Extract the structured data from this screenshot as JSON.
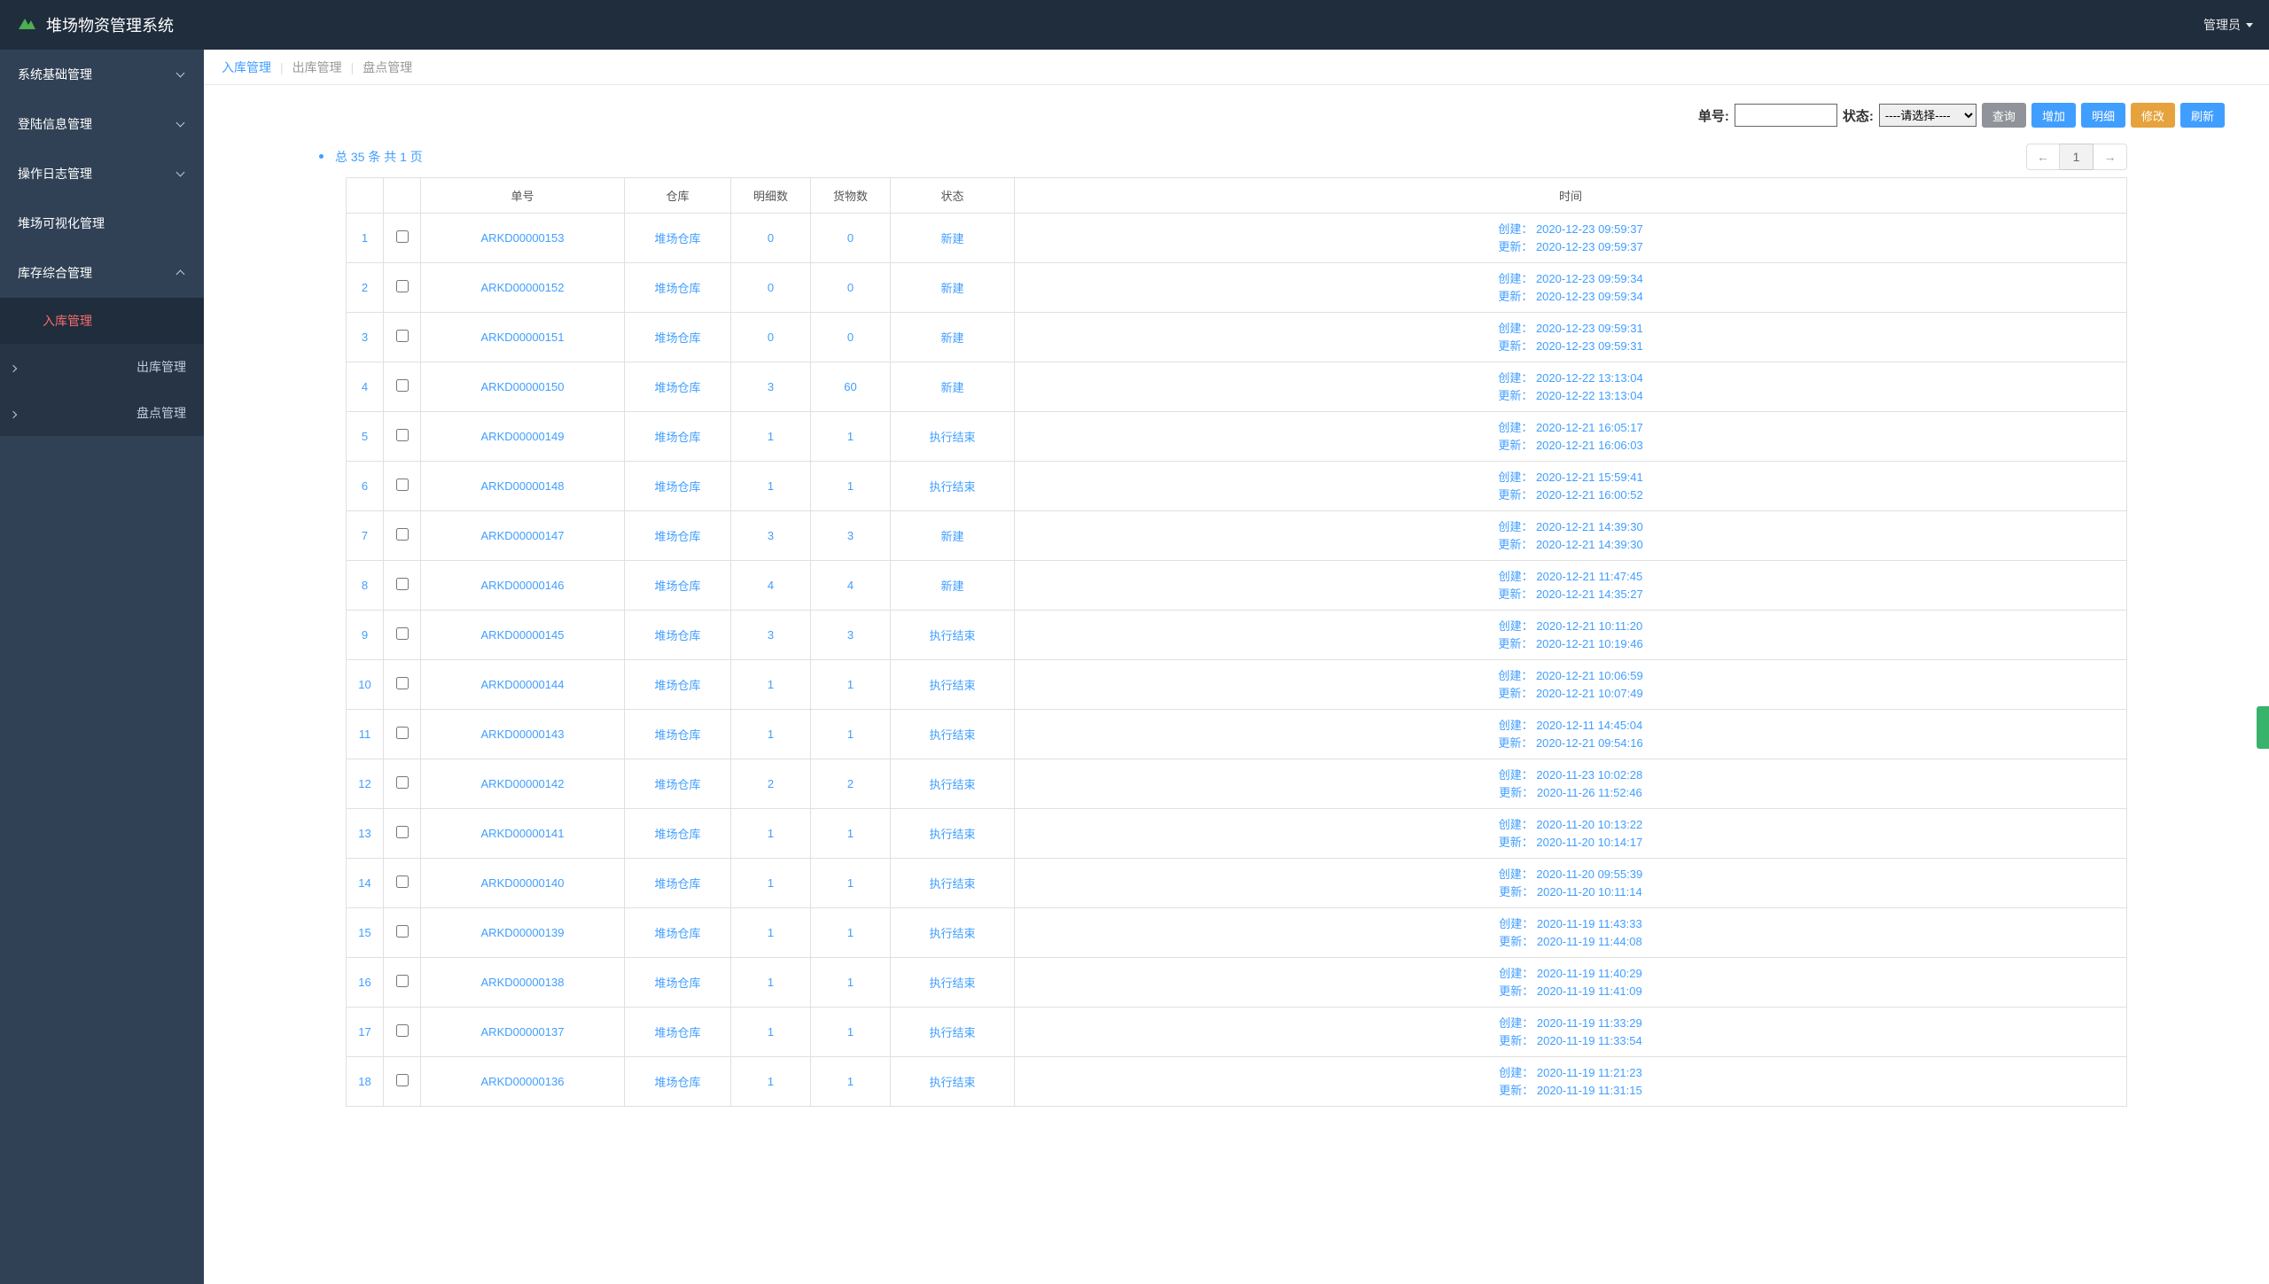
{
  "header": {
    "title": "堆场物资管理系统",
    "user": "管理员"
  },
  "sidebar": {
    "items": [
      {
        "label": "系统基础管理",
        "expandable": true
      },
      {
        "label": "登陆信息管理",
        "expandable": true
      },
      {
        "label": "操作日志管理",
        "expandable": true
      },
      {
        "label": "堆场可视化管理",
        "expandable": false
      },
      {
        "label": "库存综合管理",
        "expandable": true,
        "expanded": true,
        "subitems": [
          {
            "label": "入库管理",
            "active": true
          },
          {
            "label": "出库管理",
            "has_arrow": true
          },
          {
            "label": "盘点管理",
            "has_arrow": true
          }
        ]
      }
    ]
  },
  "tabs": {
    "items": [
      "入库管理",
      "出库管理",
      "盘点管理"
    ],
    "activeIndex": 0
  },
  "filters": {
    "order_label": "单号:",
    "status_label": "状态:",
    "status_placeholder": "----请选择----",
    "buttons": {
      "query": "查询",
      "add": "增加",
      "detail": "明细",
      "edit": "修改",
      "refresh": "刷新"
    }
  },
  "summary": {
    "text": "总 35 条  共 1 页",
    "page": "1",
    "prev": "←",
    "next": "→"
  },
  "table": {
    "headers": [
      "",
      "",
      "单号",
      "仓库",
      "明细数",
      "货物数",
      "状态",
      "时间"
    ],
    "time_labels": {
      "created": "创建：",
      "updated": "更新："
    },
    "rows": [
      {
        "idx": "1",
        "order": "ARKD00000153",
        "warehouse": "堆场仓库",
        "detail": "0",
        "goods": "0",
        "status": "新建",
        "created": "2020-12-23 09:59:37",
        "updated": "2020-12-23 09:59:37"
      },
      {
        "idx": "2",
        "order": "ARKD00000152",
        "warehouse": "堆场仓库",
        "detail": "0",
        "goods": "0",
        "status": "新建",
        "created": "2020-12-23 09:59:34",
        "updated": "2020-12-23 09:59:34"
      },
      {
        "idx": "3",
        "order": "ARKD00000151",
        "warehouse": "堆场仓库",
        "detail": "0",
        "goods": "0",
        "status": "新建",
        "created": "2020-12-23 09:59:31",
        "updated": "2020-12-23 09:59:31"
      },
      {
        "idx": "4",
        "order": "ARKD00000150",
        "warehouse": "堆场仓库",
        "detail": "3",
        "goods": "60",
        "status": "新建",
        "created": "2020-12-22 13:13:04",
        "updated": "2020-12-22 13:13:04"
      },
      {
        "idx": "5",
        "order": "ARKD00000149",
        "warehouse": "堆场仓库",
        "detail": "1",
        "goods": "1",
        "status": "执行结束",
        "created": "2020-12-21 16:05:17",
        "updated": "2020-12-21 16:06:03"
      },
      {
        "idx": "6",
        "order": "ARKD00000148",
        "warehouse": "堆场仓库",
        "detail": "1",
        "goods": "1",
        "status": "执行结束",
        "created": "2020-12-21 15:59:41",
        "updated": "2020-12-21 16:00:52"
      },
      {
        "idx": "7",
        "order": "ARKD00000147",
        "warehouse": "堆场仓库",
        "detail": "3",
        "goods": "3",
        "status": "新建",
        "created": "2020-12-21 14:39:30",
        "updated": "2020-12-21 14:39:30"
      },
      {
        "idx": "8",
        "order": "ARKD00000146",
        "warehouse": "堆场仓库",
        "detail": "4",
        "goods": "4",
        "status": "新建",
        "created": "2020-12-21 11:47:45",
        "updated": "2020-12-21 14:35:27"
      },
      {
        "idx": "9",
        "order": "ARKD00000145",
        "warehouse": "堆场仓库",
        "detail": "3",
        "goods": "3",
        "status": "执行结束",
        "created": "2020-12-21 10:11:20",
        "updated": "2020-12-21 10:19:46"
      },
      {
        "idx": "10",
        "order": "ARKD00000144",
        "warehouse": "堆场仓库",
        "detail": "1",
        "goods": "1",
        "status": "执行结束",
        "created": "2020-12-21 10:06:59",
        "updated": "2020-12-21 10:07:49"
      },
      {
        "idx": "11",
        "order": "ARKD00000143",
        "warehouse": "堆场仓库",
        "detail": "1",
        "goods": "1",
        "status": "执行结束",
        "created": "2020-12-11 14:45:04",
        "updated": "2020-12-21 09:54:16"
      },
      {
        "idx": "12",
        "order": "ARKD00000142",
        "warehouse": "堆场仓库",
        "detail": "2",
        "goods": "2",
        "status": "执行结束",
        "created": "2020-11-23 10:02:28",
        "updated": "2020-11-26 11:52:46"
      },
      {
        "idx": "13",
        "order": "ARKD00000141",
        "warehouse": "堆场仓库",
        "detail": "1",
        "goods": "1",
        "status": "执行结束",
        "created": "2020-11-20 10:13:22",
        "updated": "2020-11-20 10:14:17"
      },
      {
        "idx": "14",
        "order": "ARKD00000140",
        "warehouse": "堆场仓库",
        "detail": "1",
        "goods": "1",
        "status": "执行结束",
        "created": "2020-11-20 09:55:39",
        "updated": "2020-11-20 10:11:14"
      },
      {
        "idx": "15",
        "order": "ARKD00000139",
        "warehouse": "堆场仓库",
        "detail": "1",
        "goods": "1",
        "status": "执行结束",
        "created": "2020-11-19 11:43:33",
        "updated": "2020-11-19 11:44:08"
      },
      {
        "idx": "16",
        "order": "ARKD00000138",
        "warehouse": "堆场仓库",
        "detail": "1",
        "goods": "1",
        "status": "执行结束",
        "created": "2020-11-19 11:40:29",
        "updated": "2020-11-19 11:41:09"
      },
      {
        "idx": "17",
        "order": "ARKD00000137",
        "warehouse": "堆场仓库",
        "detail": "1",
        "goods": "1",
        "status": "执行结束",
        "created": "2020-11-19 11:33:29",
        "updated": "2020-11-19 11:33:54"
      },
      {
        "idx": "18",
        "order": "ARKD00000136",
        "warehouse": "堆场仓库",
        "detail": "1",
        "goods": "1",
        "status": "执行结束",
        "created": "2020-11-19 11:21:23",
        "updated": "2020-11-19 11:31:15"
      }
    ]
  },
  "colors": {
    "header_bg": "#1f2d3d",
    "sidebar_bg": "#304156",
    "submenu_bg": "#1f2d3d",
    "active_text": "#f56c6c",
    "link": "#409eff",
    "btn_info": "#909399",
    "btn_primary": "#409eff",
    "btn_warning": "#e6a23c"
  }
}
